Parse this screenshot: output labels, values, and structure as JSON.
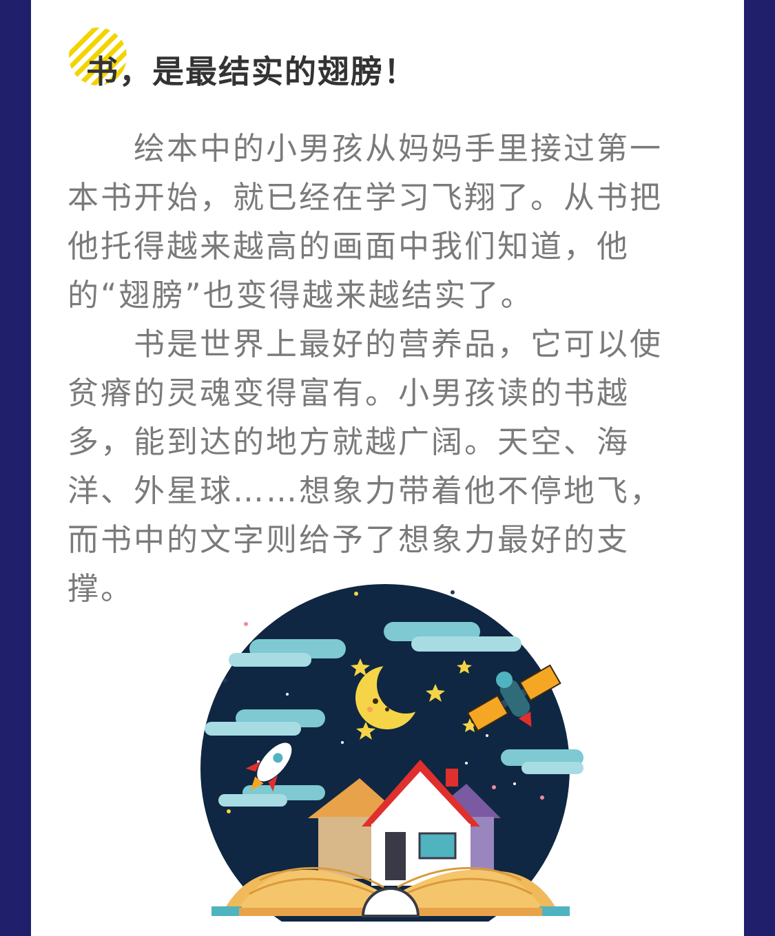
{
  "section": {
    "title": "书，是最结实的翅膀！"
  },
  "paragraphs": [
    "绘本中的小男孩从妈妈手里接过第一本书开始，就已经在学习飞翔了。从书把他托得越来越高的画面中我们知道，他的“翅膀”也变得越来越结实了。",
    "书是世界上最好的营养品，它可以使贫瘠的灵魂变得富有。小男孩读的书越多，能到达的地方就越广阔。天空、海洋、外星球……想象力带着他不停地飞，而书中的文字则给予了想象力最好的支撑。"
  ],
  "colors": {
    "frame": "#1f1f6b",
    "title_deco": "#f2d400",
    "night_sky": "#0f2742",
    "cloud": "#7ec9d2",
    "book": "#f5c56b",
    "roof": "#e0302d",
    "moon": "#f5d547"
  },
  "illustration": {
    "icons": [
      "moon-icon",
      "satellite-icon",
      "rocket-icon",
      "house-icon",
      "open-book-icon",
      "star-icon",
      "cloud-icon"
    ]
  }
}
